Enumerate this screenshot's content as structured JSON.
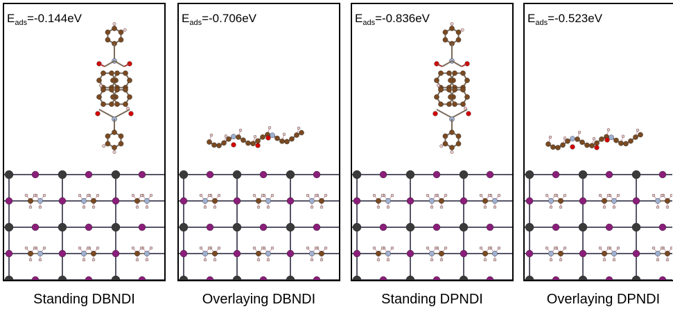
{
  "panels": [
    {
      "energy_symbol": "E",
      "energy_subscript": "ads",
      "energy_value": "=-0.144eV",
      "caption": "Standing DBNDI"
    },
    {
      "energy_symbol": "E",
      "energy_subscript": "ads",
      "energy_value": "=-0.706eV",
      "caption": "Overlaying DBNDI"
    },
    {
      "energy_symbol": "E",
      "energy_subscript": "ads",
      "energy_value": "=-0.836eV",
      "caption": "Standing DPNDI"
    },
    {
      "energy_symbol": "E",
      "energy_subscript": "ads",
      "energy_value": "=-0.523eV",
      "caption": "Overlaying DPNDI"
    }
  ]
}
